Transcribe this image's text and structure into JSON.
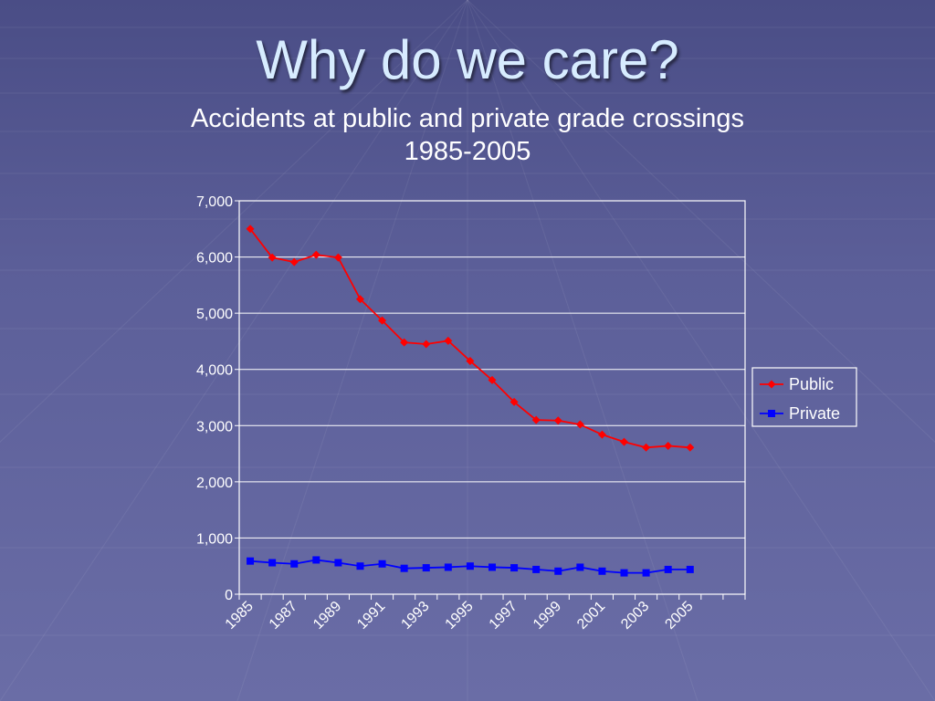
{
  "slide": {
    "title": "Why do we care?",
    "subtitle_line1": "Accidents at public and private grade crossings",
    "subtitle_line2": "1985-2005"
  },
  "chart_data": {
    "type": "line",
    "title": "",
    "xlabel": "",
    "ylabel": "",
    "x": [
      1985,
      1986,
      1987,
      1988,
      1989,
      1990,
      1991,
      1992,
      1993,
      1994,
      1995,
      1996,
      1997,
      1998,
      1999,
      2000,
      2001,
      2002,
      2003,
      2004,
      2005
    ],
    "x_tick_labels": [
      "1985",
      "1987",
      "1989",
      "1991",
      "1993",
      "1995",
      "1997",
      "1999",
      "2001",
      "2003",
      "2005"
    ],
    "y_tick_labels": [
      "0",
      "1,000",
      "2,000",
      "3,000",
      "4,000",
      "5,000",
      "6,000",
      "7,000"
    ],
    "ylim": [
      0,
      7000
    ],
    "y_ticks": [
      0,
      1000,
      2000,
      3000,
      4000,
      5000,
      6000,
      7000
    ],
    "grid": "horizontal",
    "legend_position": "right",
    "series": [
      {
        "name": "Public",
        "color": "#ff0000",
        "marker": "diamond",
        "values": [
          6500,
          5990,
          5910,
          6040,
          5990,
          5250,
          4870,
          4480,
          4450,
          4510,
          4150,
          3810,
          3420,
          3100,
          3090,
          3020,
          2840,
          2710,
          2610,
          2640,
          2610
        ]
      },
      {
        "name": "Private",
        "color": "#0000ff",
        "marker": "square",
        "values": [
          590,
          560,
          540,
          610,
          560,
          500,
          540,
          460,
          470,
          480,
          500,
          480,
          470,
          440,
          410,
          480,
          410,
          380,
          380,
          440,
          440
        ]
      }
    ]
  }
}
